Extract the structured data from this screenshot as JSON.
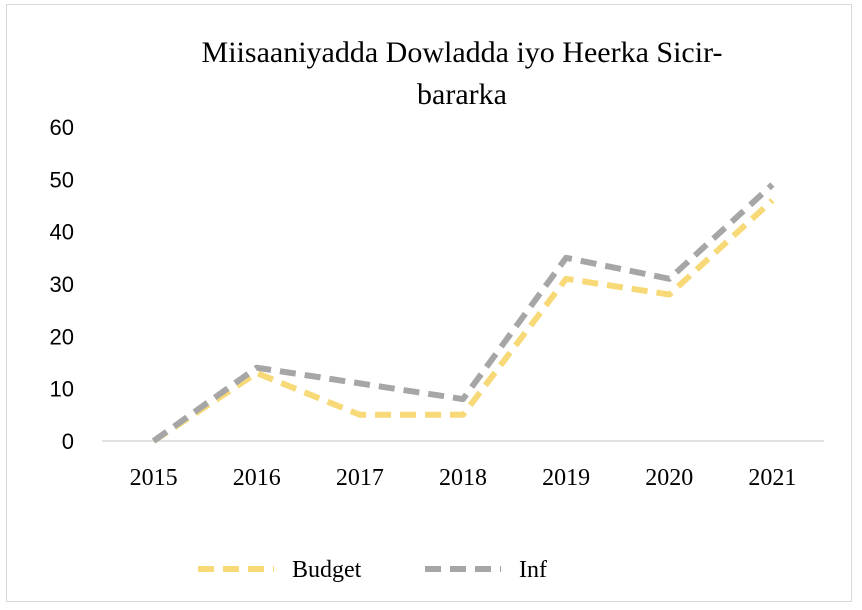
{
  "chart_data": {
    "type": "line",
    "title_lines": [
      "Miisaaniyadda Dowladda iyo Heerka Sicir-",
      "bararka"
    ],
    "xlabel": "",
    "ylabel": "",
    "categories": [
      "2015",
      "2016",
      "2017",
      "2018",
      "2019",
      "2020",
      "2021"
    ],
    "ylim": [
      0,
      60
    ],
    "yticks": [
      "0",
      "10",
      "20",
      "30",
      "40",
      "50",
      "60"
    ],
    "grid": false,
    "legend_position": "bottom",
    "series": [
      {
        "name": "Budget",
        "values": [
          0,
          13,
          5,
          5,
          31,
          28,
          46
        ],
        "color": "#f8d978",
        "dash": true
      },
      {
        "name": "Inf",
        "values": [
          0,
          14,
          11,
          8,
          35,
          31,
          49
        ],
        "color": "#a6a6a6",
        "dash": true
      }
    ]
  }
}
